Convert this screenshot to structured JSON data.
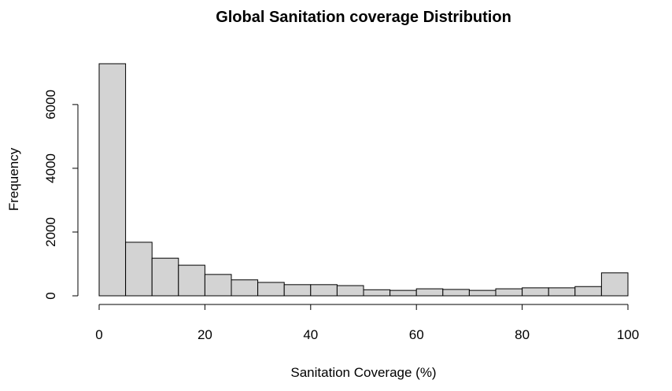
{
  "chart_data": {
    "type": "bar",
    "title": "Global Sanitation coverage Distribution",
    "xlabel": "Sanitation Coverage (%)",
    "ylabel": "Frequency",
    "bin_edges": [
      0,
      5,
      10,
      15,
      20,
      25,
      30,
      35,
      40,
      45,
      50,
      55,
      60,
      65,
      70,
      75,
      80,
      85,
      90,
      95,
      100
    ],
    "values": [
      7280,
      1680,
      1180,
      960,
      670,
      500,
      420,
      350,
      350,
      320,
      190,
      170,
      220,
      200,
      170,
      220,
      250,
      250,
      290,
      720
    ],
    "xlim": [
      0,
      100
    ],
    "ylim": [
      0,
      7280
    ],
    "x_ticks": [
      0,
      20,
      40,
      60,
      80,
      100
    ],
    "y_ticks": [
      0,
      2000,
      4000,
      6000
    ],
    "bar_color": "#d3d3d3",
    "grid": false
  }
}
